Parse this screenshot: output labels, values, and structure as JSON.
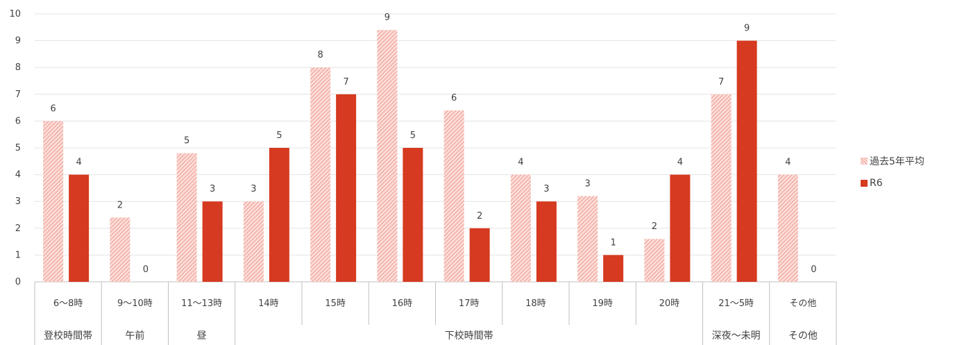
{
  "chart_data": {
    "type": "bar",
    "title": "",
    "xlabel": "",
    "ylabel": "",
    "ylim": [
      0,
      10
    ],
    "yticks": [
      0,
      1,
      2,
      3,
      4,
      5,
      6,
      7,
      8,
      9,
      10
    ],
    "grid": true,
    "legend_position": "right",
    "categories": [
      "6〜8時",
      "9〜10時",
      "11〜13時",
      "14時",
      "15時",
      "16時",
      "17時",
      "18時",
      "19時",
      "20時",
      "21〜5時",
      "その他"
    ],
    "groups": [
      {
        "label": "登校時間帯",
        "span": 1
      },
      {
        "label": "午前",
        "span": 1
      },
      {
        "label": "昼",
        "span": 1
      },
      {
        "label": "下校時間帯",
        "span": 7
      },
      {
        "label": "深夜〜未明",
        "span": 1
      },
      {
        "label": "その他",
        "span": 1
      }
    ],
    "series": [
      {
        "name": "過去5年平均",
        "color": "#f4b4ac",
        "pattern": "hatch",
        "values": [
          6.0,
          2.4,
          4.8,
          3.0,
          8.0,
          9.4,
          6.4,
          4.0,
          3.2,
          1.6,
          7.0,
          4.0
        ],
        "labels": [
          "6",
          "2",
          "5",
          "3",
          "8",
          "9",
          "6",
          "4",
          "3",
          "2",
          "7",
          "4"
        ]
      },
      {
        "name": "R6",
        "color": "#d63a20",
        "pattern": "solid",
        "values": [
          4,
          0,
          3,
          5,
          7,
          5,
          2,
          3,
          1,
          4,
          9,
          0
        ],
        "labels": [
          "4",
          "0",
          "3",
          "5",
          "7",
          "5",
          "2",
          "3",
          "1",
          "4",
          "9",
          "0"
        ]
      }
    ]
  }
}
